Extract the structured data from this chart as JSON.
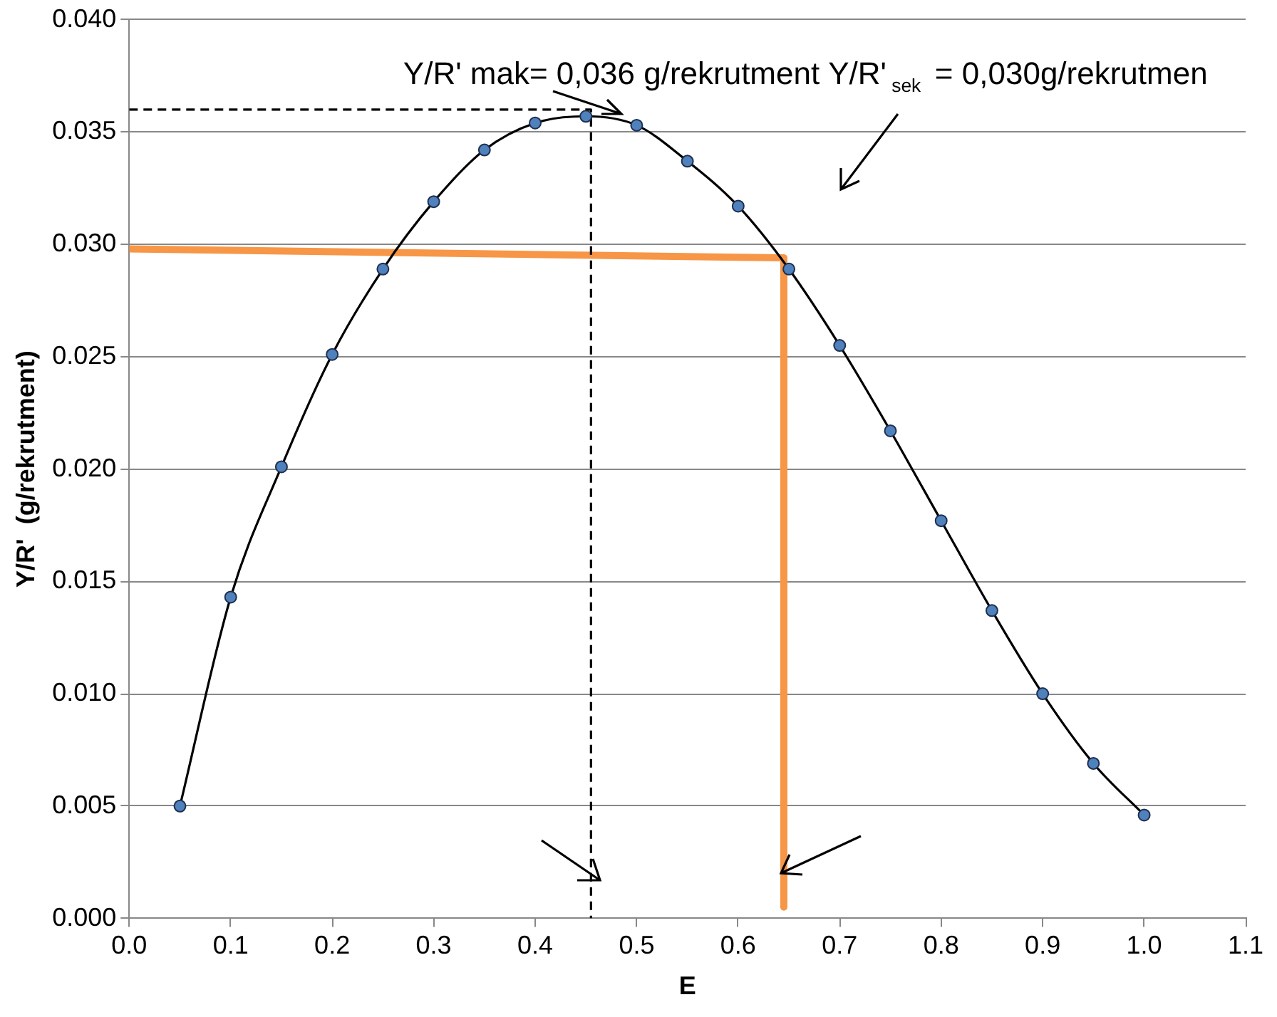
{
  "chart_data": {
    "type": "line",
    "xlabel": "E",
    "ylabel": "Y/R'  (g/rekrutment)",
    "xlim": [
      0,
      1.1
    ],
    "xticks": [
      {
        "value": 0,
        "label": "0.0"
      },
      {
        "value": 0.1,
        "label": "0.1"
      },
      {
        "value": 0.2,
        "label": "0.2"
      },
      {
        "value": 0.3,
        "label": "0.3"
      },
      {
        "value": 0.4,
        "label": "0.4"
      },
      {
        "value": 0.5,
        "label": "0.5"
      },
      {
        "value": 0.6,
        "label": "0.6"
      },
      {
        "value": 0.7,
        "label": "0.7"
      },
      {
        "value": 0.8,
        "label": "0.8"
      },
      {
        "value": 0.9,
        "label": "0.9"
      },
      {
        "value": 1,
        "label": "1.0"
      },
      {
        "value": 1.1,
        "label": "1.1"
      }
    ],
    "ylim": [
      0,
      0.04
    ],
    "yticks": [
      {
        "value": 0,
        "label": "0.000"
      },
      {
        "value": 0.005,
        "label": "0.005"
      },
      {
        "value": 0.01,
        "label": "0.010"
      },
      {
        "value": 0.015,
        "label": "0.015"
      },
      {
        "value": 0.02,
        "label": "0.020"
      },
      {
        "value": 0.025,
        "label": "0.025"
      },
      {
        "value": 0.03,
        "label": "0.030"
      },
      {
        "value": 0.035,
        "label": "0.035"
      },
      {
        "value": 0.04,
        "label": "0.040"
      }
    ],
    "grid": "y",
    "legend": false,
    "annotations": [
      "Y/R' mak= 0,036 g/rekrutment",
      "Y/R'$_{sek}$ = 0,030g/rekrutmen"
    ],
    "series": [
      {
        "color": "#000000",
        "marker": "circle",
        "line_style": "solid",
        "x": [
          0.05,
          0.1,
          0.15,
          0.2,
          0.25,
          0.3,
          0.35,
          0.4,
          0.45,
          0.5,
          0.55,
          0.6,
          0.65,
          0.7,
          0.75,
          0.8,
          0.85,
          0.9,
          0.95,
          1.0
        ],
        "values": [
          0.005,
          0.0143,
          0.0201,
          0.0251,
          0.0289,
          0.0319,
          0.0342,
          0.0354,
          0.0357,
          0.0353,
          0.0337,
          0.0317,
          0.0289,
          0.0255,
          0.0217,
          0.0177,
          0.0137,
          0.01,
          0.0069,
          0.0046
        ]
      },
      {
        "color": "#000000",
        "marker": "none",
        "line_style": "dashed",
        "x": [
          0,
          0.455,
          0.455
        ],
        "values": [
          0.036,
          0.036,
          0
        ]
      },
      {
        "color": "#f79646",
        "marker": "none",
        "line_style": "solid",
        "x": [
          0,
          0.645,
          0.645
        ],
        "values": [
          0.0298,
          0.0294,
          0.0005
        ]
      }
    ]
  }
}
